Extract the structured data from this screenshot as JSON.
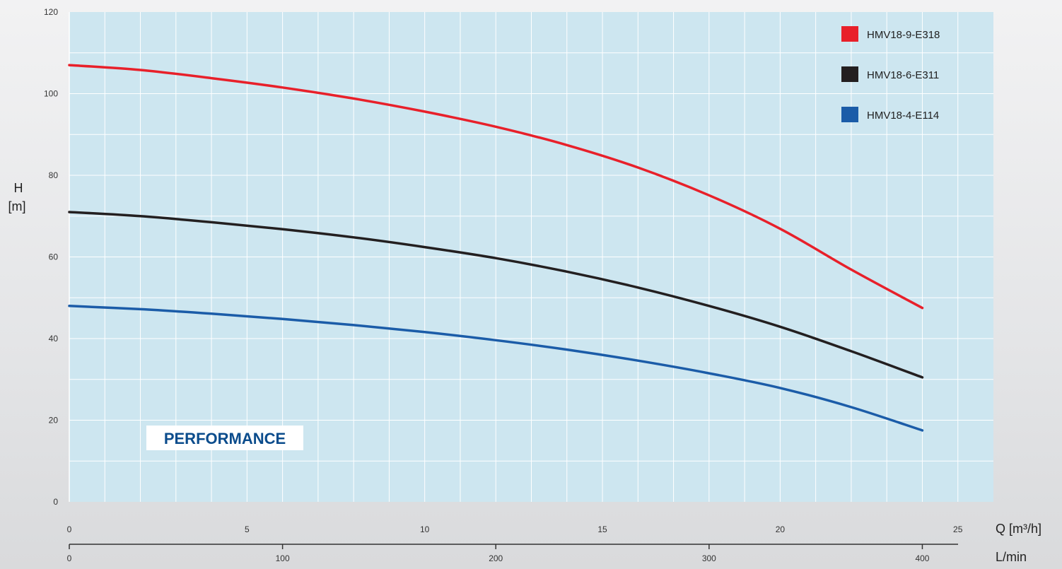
{
  "chart_data": {
    "type": "line",
    "title": "PERFORMANCE",
    "ylabel": "H",
    "ylabel_unit": "[m]",
    "xlabel": "Q [m³/h]",
    "xlabel2": "L/min",
    "ylim": [
      0,
      120
    ],
    "xlim": [
      0,
      26
    ],
    "yticks": [
      0,
      20,
      40,
      60,
      80,
      100,
      120
    ],
    "xticks": [
      0,
      5,
      10,
      15,
      20,
      25
    ],
    "xticks_lpm": [
      0,
      100,
      200,
      300,
      400
    ],
    "legend_position": "top-right",
    "grid": true,
    "series": [
      {
        "name": "HMV18-9-E318",
        "color": "#e8202a",
        "x": [
          0,
          2,
          4,
          6,
          8,
          10,
          12,
          14,
          16,
          18,
          20,
          22,
          24
        ],
        "y": [
          107,
          105.8,
          103.8,
          101.5,
          98.8,
          95.6,
          91.9,
          87.4,
          81.9,
          75.1,
          66.9,
          56.9,
          47.5
        ]
      },
      {
        "name": "HMV18-6-E311",
        "color": "#231f20",
        "x": [
          0,
          2,
          4,
          6,
          8,
          10,
          12,
          14,
          16,
          18,
          20,
          22,
          24
        ],
        "y": [
          71,
          70,
          68.5,
          66.8,
          64.8,
          62.4,
          59.7,
          56.4,
          52.5,
          48.0,
          42.9,
          36.9,
          30.5
        ]
      },
      {
        "name": "HMV18-4-E114",
        "color": "#1b5ca8",
        "x": [
          0,
          2,
          4,
          6,
          8,
          10,
          12,
          14,
          16,
          18,
          20,
          22,
          24
        ],
        "y": [
          48,
          47.2,
          46.1,
          44.8,
          43.3,
          41.6,
          39.6,
          37.3,
          34.6,
          31.5,
          27.9,
          23.2,
          17.5
        ]
      }
    ]
  }
}
